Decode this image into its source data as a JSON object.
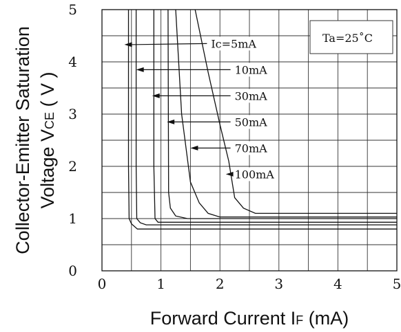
{
  "chart_data": {
    "type": "line",
    "xlabel": "Forward Current I",
    "xlabel_sub": "F",
    "xlabel_unit": " (mA)",
    "ylabel_line1": "Collector-Emitter Saturation",
    "ylabel_line2_prefix": "Voltage V",
    "ylabel_line2_sub": "CE",
    "ylabel_line2_suffix": " ( V )",
    "xlim": [
      0,
      5
    ],
    "ylim": [
      0,
      5
    ],
    "x_ticks": [
      0,
      1,
      2,
      3,
      4,
      5
    ],
    "y_ticks": [
      0,
      1,
      2,
      3,
      4,
      5
    ],
    "grid": true,
    "condition": "Ta=25˚C",
    "series": [
      {
        "name": "Ic=5mA",
        "label_at": [
          1.85,
          4.35
        ],
        "arrow_to": [
          0.38,
          4.33
        ],
        "x": [
          0.45,
          0.45,
          0.46,
          0.5,
          0.6,
          5.0
        ],
        "y": [
          5.0,
          2.0,
          1.0,
          0.9,
          0.8,
          0.8
        ]
      },
      {
        "name": "10mA",
        "label_at": [
          2.25,
          3.85
        ],
        "arrow_to": [
          0.58,
          3.85
        ],
        "x": [
          0.58,
          0.58,
          0.59,
          0.65,
          0.75,
          5.0
        ],
        "y": [
          5.0,
          2.0,
          1.0,
          0.92,
          0.88,
          0.88
        ]
      },
      {
        "name": "30mA",
        "label_at": [
          2.25,
          3.35
        ],
        "arrow_to": [
          0.85,
          3.35
        ],
        "x": [
          0.88,
          0.88,
          0.9,
          0.95,
          1.1,
          5.0
        ],
        "y": [
          5.0,
          2.0,
          1.0,
          0.93,
          0.93,
          0.93
        ]
      },
      {
        "name": "50mA",
        "label_at": [
          2.25,
          2.85
        ],
        "arrow_to": [
          1.1,
          2.85
        ],
        "x": [
          1.12,
          1.13,
          1.16,
          1.25,
          1.45,
          5.0
        ],
        "y": [
          5.0,
          1.5,
          1.2,
          1.05,
          1.0,
          1.0
        ]
      },
      {
        "name": "70mA",
        "label_at": [
          2.25,
          2.35
        ],
        "arrow_to": [
          1.5,
          2.35
        ],
        "x": [
          1.25,
          1.35,
          1.5,
          1.65,
          1.8,
          2.0,
          5.0
        ],
        "y": [
          5.0,
          3.0,
          1.7,
          1.3,
          1.1,
          1.03,
          1.03
        ]
      },
      {
        "name": "100mA",
        "label_at": [
          2.25,
          1.85
        ],
        "arrow_to": [
          2.1,
          1.85
        ],
        "x": [
          1.58,
          1.8,
          2.0,
          2.15,
          2.25,
          2.4,
          2.6,
          5.0
        ],
        "y": [
          5.0,
          3.8,
          2.8,
          2.1,
          1.4,
          1.2,
          1.1,
          1.1
        ]
      }
    ]
  }
}
